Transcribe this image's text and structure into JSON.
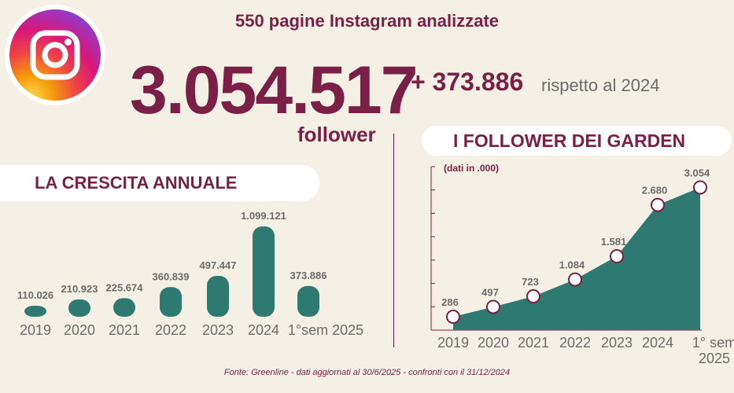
{
  "headline": "550 pagine Instagram analizzate",
  "total": {
    "value": "3.054.517",
    "unit": "follower"
  },
  "delta": {
    "value": "+ 373.886",
    "note": "rispetto al 2024"
  },
  "left_section_title": "LA CRESCITA ANNUALE",
  "right_section_title": "I FOLLOWER DEI GARDEN",
  "source": "Fonte: Greenline - dati aggiornati al 30/6/2025 - confronti con il 31/12/2024",
  "colors": {
    "primary": "#7a1f45",
    "teal": "#2e7a70",
    "background": "#f4f0e6",
    "muted": "#6b6b6b"
  },
  "chart_data": [
    {
      "type": "bar",
      "title": "LA CRESCITA ANNUALE",
      "categories": [
        "2019",
        "2020",
        "2021",
        "2022",
        "2023",
        "2024",
        "1°sem 2025"
      ],
      "values": [
        110026,
        210923,
        225674,
        360839,
        497447,
        1099121,
        373886
      ],
      "labels": [
        "110.026",
        "210.923",
        "225.674",
        "360.839",
        "497.447",
        "1.099.121",
        "373.886"
      ],
      "ylim": [
        0,
        1100000
      ],
      "grid": false
    },
    {
      "type": "area",
      "title": "I FOLLOWER DEI GARDEN",
      "subtitle": "(dati in .000)",
      "categories": [
        "2019",
        "2020",
        "2021",
        "2022",
        "2023",
        "2024",
        "1° sem 2025"
      ],
      "values": [
        286,
        497,
        723,
        1084,
        1581,
        2680,
        3054
      ],
      "labels": [
        "286",
        "497",
        "723",
        "1.084",
        "1.581",
        "2.680",
        "3.054"
      ],
      "ylim": [
        0,
        3500
      ],
      "grid": false
    }
  ]
}
